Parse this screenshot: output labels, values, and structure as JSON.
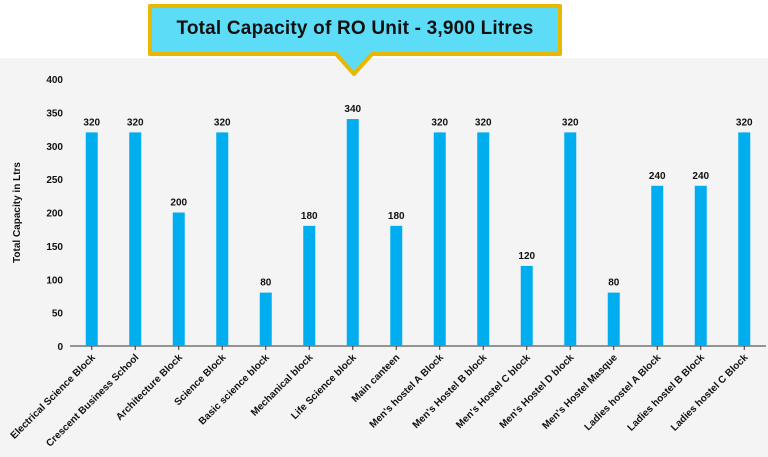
{
  "chart_data": {
    "type": "bar",
    "title": "Total Capacity of RO Unit - 3,900 Litres",
    "ylabel": "Total Capacity in Ltrs",
    "xlabel": "",
    "ylim": [
      0,
      400
    ],
    "yticks": [
      0,
      50,
      100,
      150,
      200,
      250,
      300,
      350,
      400
    ],
    "grid": false,
    "legend": "none",
    "categories": [
      "Electrical Science Block",
      "Crescent Business School",
      "Architecture Block",
      "Science Block",
      "Basic science block",
      "Mechanical block",
      "Life Science block",
      "Main canteen",
      "Men's hostel A Block",
      "Men's Hostel B block",
      "Men's Hostel C block",
      "Men's Hostel D block",
      "Men's Hostel Masque",
      "Ladies hostel A Block",
      "Ladies hostel B Block",
      "Ladies hostel C Block"
    ],
    "values": [
      320,
      320,
      200,
      320,
      80,
      180,
      340,
      180,
      320,
      320,
      120,
      320,
      80,
      240,
      240,
      320
    ],
    "colors": {
      "bar": "#00AEEF",
      "callout_fill": "#5DDCF7",
      "callout_border": "#E8B800",
      "axis": "#333333",
      "plot_bg": "#F4F4F4"
    }
  }
}
